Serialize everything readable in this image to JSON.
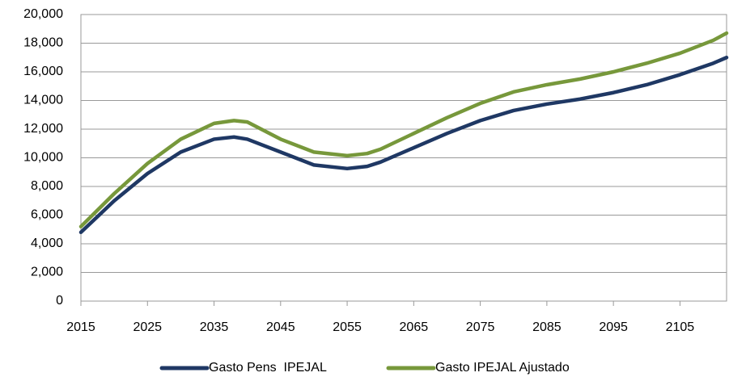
{
  "chart_data": {
    "type": "line",
    "x": [
      2015,
      2020,
      2025,
      2030,
      2035,
      2038,
      2040,
      2045,
      2050,
      2055,
      2058,
      2060,
      2065,
      2070,
      2075,
      2080,
      2085,
      2090,
      2095,
      2100,
      2105,
      2110,
      2112
    ],
    "series": [
      {
        "name": "Gasto Pens  IPEJAL",
        "color": "#1f3864",
        "values": [
          4800,
          7000,
          8900,
          10400,
          11300,
          11450,
          11300,
          10400,
          9500,
          9250,
          9400,
          9700,
          10700,
          11700,
          12600,
          13300,
          13750,
          14100,
          14550,
          15100,
          15800,
          16600,
          17000
        ]
      },
      {
        "name": "Gasto IPEJAL Ajustado",
        "color": "#77983b",
        "values": [
          5200,
          7500,
          9600,
          11300,
          12400,
          12600,
          12500,
          11300,
          10400,
          10150,
          10300,
          10600,
          11700,
          12800,
          13800,
          14600,
          15100,
          15500,
          16000,
          16600,
          17300,
          18200,
          18700
        ]
      }
    ],
    "xlim": [
      2015,
      2112
    ],
    "xticks": [
      2015,
      2025,
      2035,
      2045,
      2055,
      2065,
      2075,
      2085,
      2095,
      2105
    ],
    "ylim": [
      0,
      20000
    ],
    "yticks": [
      0,
      {
        "value": 2000,
        "label": "2,000"
      },
      {
        "value": 4000,
        "label": "4,000"
      },
      {
        "value": 6000,
        "label": "6,000"
      },
      {
        "value": 8000,
        "label": "8,000"
      },
      {
        "value": 10000,
        "label": "10,000"
      },
      {
        "value": 12000,
        "label": "12,000"
      },
      {
        "value": 14000,
        "label": "14,000"
      },
      {
        "value": 16000,
        "label": "16,000"
      },
      {
        "value": 18000,
        "label": "18,000"
      },
      {
        "value": 20000,
        "label": "20,000"
      }
    ],
    "grid": true,
    "legend": "bottom"
  }
}
